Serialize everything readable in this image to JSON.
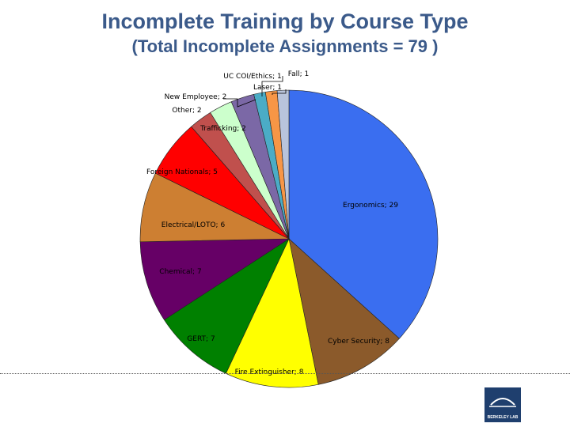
{
  "header": {
    "title": "Incomplete Training by Course Type",
    "subtitle": "(Total Incomplete Assignments = 79 )"
  },
  "logo": {
    "text": "BERKELEY LAB"
  },
  "chart_data": {
    "type": "pie",
    "title": "Incomplete Training by Course Type",
    "subtitle": "(Total Incomplete Assignments = 79 )",
    "slices": [
      {
        "label": "Ergonomics; 29",
        "value": 29,
        "color": "#3a6ef0"
      },
      {
        "label": "Cyber Security; 8",
        "value": 8,
        "color": "#8b5a2b"
      },
      {
        "label": "Fire Extinguisher; 8",
        "value": 8,
        "color": "#ffff00"
      },
      {
        "label": "GERT; 7",
        "value": 7,
        "color": "#008000"
      },
      {
        "label": "Chemical; 7",
        "value": 7,
        "color": "#660066"
      },
      {
        "label": "Electrical/LOTO; 6",
        "value": 6,
        "color": "#cd7f32"
      },
      {
        "label": "Foreign Nationals; 5",
        "value": 5,
        "color": "#ff0000"
      },
      {
        "label": "Trafficking; 2",
        "value": 2,
        "color": "#c0504d"
      },
      {
        "label": "Other; 2",
        "value": 2,
        "color": "#ccffcc"
      },
      {
        "label": "New Employee; 2",
        "value": 2,
        "color": "#7b68a6"
      },
      {
        "label": "UC COI/Ethics; 1",
        "value": 1,
        "color": "#4bacc6"
      },
      {
        "label": "Laser; 1",
        "value": 1,
        "color": "#f79646"
      },
      {
        "label": "Fall; 1",
        "value": 1,
        "color": "#b8c4dc"
      }
    ]
  }
}
